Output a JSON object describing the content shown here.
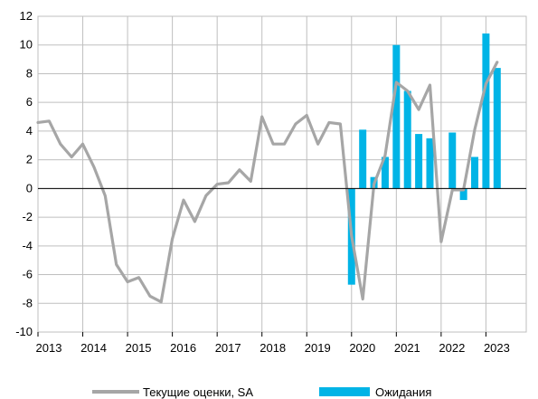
{
  "chart_data": {
    "type": "line+bar",
    "ylim": [
      -10,
      12
    ],
    "yticks": [
      -10,
      -8,
      -6,
      -4,
      -2,
      0,
      2,
      4,
      6,
      8,
      10,
      12
    ],
    "xlim": [
      2013,
      2023.9
    ],
    "xticks": [
      2013,
      2014,
      2015,
      2016,
      2017,
      2018,
      2019,
      2020,
      2021,
      2022,
      2023
    ],
    "grid": true,
    "legend_position": "bottom",
    "series": [
      {
        "name": "Текущие оценки, SA",
        "type": "line",
        "color": "#a6a6a6",
        "points": [
          [
            2013.0,
            4.6
          ],
          [
            2013.25,
            4.7
          ],
          [
            2013.5,
            3.1
          ],
          [
            2013.75,
            2.2
          ],
          [
            2014.0,
            3.1
          ],
          [
            2014.25,
            1.5
          ],
          [
            2014.5,
            -0.5
          ],
          [
            2014.75,
            -5.3
          ],
          [
            2015.0,
            -6.5
          ],
          [
            2015.25,
            -6.2
          ],
          [
            2015.5,
            -7.5
          ],
          [
            2015.75,
            -7.9
          ],
          [
            2016.0,
            -3.5
          ],
          [
            2016.25,
            -0.8
          ],
          [
            2016.5,
            -2.3
          ],
          [
            2016.75,
            -0.5
          ],
          [
            2017.0,
            0.3
          ],
          [
            2017.25,
            0.4
          ],
          [
            2017.5,
            1.3
          ],
          [
            2017.75,
            0.5
          ],
          [
            2018.0,
            5.0
          ],
          [
            2018.25,
            3.1
          ],
          [
            2018.5,
            3.1
          ],
          [
            2018.75,
            4.5
          ],
          [
            2019.0,
            5.1
          ],
          [
            2019.25,
            3.1
          ],
          [
            2019.5,
            4.6
          ],
          [
            2019.75,
            4.5
          ],
          [
            2020.0,
            -3.3
          ],
          [
            2020.25,
            -7.7
          ],
          [
            2020.5,
            0.3
          ],
          [
            2020.75,
            2.3
          ],
          [
            2021.0,
            7.4
          ],
          [
            2021.25,
            6.8
          ],
          [
            2021.5,
            5.5
          ],
          [
            2021.75,
            7.2
          ],
          [
            2022.0,
            -3.7
          ],
          [
            2022.25,
            -0.1
          ],
          [
            2022.5,
            -0.1
          ],
          [
            2022.75,
            4.1
          ],
          [
            2023.0,
            7.3
          ],
          [
            2023.25,
            8.8
          ]
        ]
      },
      {
        "name": "Ожидания",
        "type": "bar",
        "color": "#00b4e6",
        "points": [
          [
            2020.0,
            -6.7
          ],
          [
            2020.25,
            4.1
          ],
          [
            2020.5,
            0.8
          ],
          [
            2020.75,
            2.2
          ],
          [
            2021.0,
            10.0
          ],
          [
            2021.25,
            6.8
          ],
          [
            2021.5,
            3.8
          ],
          [
            2021.75,
            3.5
          ],
          [
            2022.25,
            3.9
          ],
          [
            2022.5,
            -0.8
          ],
          [
            2022.75,
            2.2
          ],
          [
            2023.0,
            10.8
          ],
          [
            2023.25,
            8.4
          ]
        ]
      }
    ]
  }
}
